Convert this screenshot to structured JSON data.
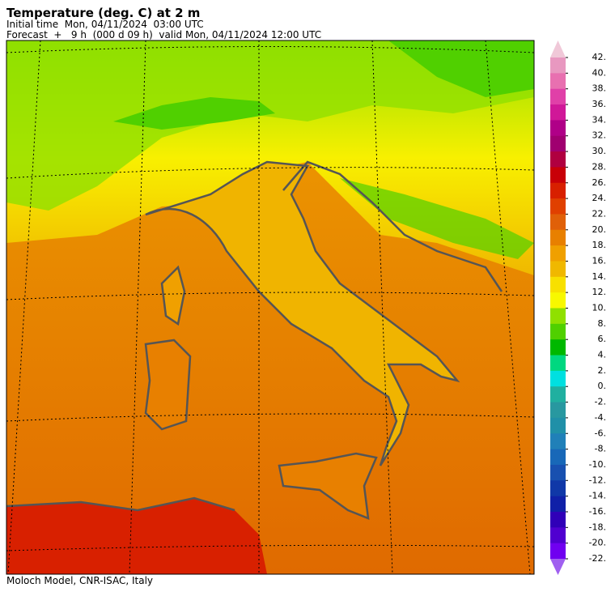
{
  "header": {
    "title": "Temperature (deg. C) at 2 m",
    "initial_time": "Initial time  Mon, 04/11/2024  03:00 UTC",
    "forecast": "Forecast  +   9 h  (000 d 09 h)  valid Mon, 04/11/2024 12:00 UTC"
  },
  "footer": {
    "credit": "Moloch Model, CNR-ISAC, Italy"
  },
  "colorbar": {
    "ticks": [
      {
        "value": 42,
        "label": "42."
      },
      {
        "value": 40,
        "label": "40."
      },
      {
        "value": 38,
        "label": "38."
      },
      {
        "value": 36,
        "label": "36."
      },
      {
        "value": 34,
        "label": "34."
      },
      {
        "value": 32,
        "label": "32."
      },
      {
        "value": 30,
        "label": "30."
      },
      {
        "value": 28,
        "label": "28."
      },
      {
        "value": 26,
        "label": "26."
      },
      {
        "value": 24,
        "label": "24."
      },
      {
        "value": 22,
        "label": "22."
      },
      {
        "value": 20,
        "label": "20."
      },
      {
        "value": 18,
        "label": "18."
      },
      {
        "value": 16,
        "label": "16."
      },
      {
        "value": 14,
        "label": "14."
      },
      {
        "value": 12,
        "label": "12."
      },
      {
        "value": 10,
        "label": "10."
      },
      {
        "value": 8,
        "label": "8."
      },
      {
        "value": 6,
        "label": "6."
      },
      {
        "value": 4,
        "label": "4."
      },
      {
        "value": 2,
        "label": "2."
      },
      {
        "value": 0,
        "label": "0."
      },
      {
        "value": -2,
        "label": "-2."
      },
      {
        "value": -4,
        "label": "-4."
      },
      {
        "value": -6,
        "label": "-6."
      },
      {
        "value": -8,
        "label": "-8."
      },
      {
        "value": -10,
        "label": "-10."
      },
      {
        "value": -12,
        "label": "-12."
      },
      {
        "value": -14,
        "label": "-14."
      },
      {
        "value": -16,
        "label": "-16."
      },
      {
        "value": -18,
        "label": "-18."
      },
      {
        "value": -20,
        "label": "-20."
      },
      {
        "value": -22,
        "label": "-22."
      }
    ],
    "colors": [
      "#f0c8d8",
      "#e898c0",
      "#e870b0",
      "#e040a8",
      "#d01898",
      "#b00088",
      "#a00070",
      "#b00040",
      "#c80008",
      "#d82000",
      "#e04000",
      "#e06008",
      "#e88000",
      "#f0a000",
      "#f0b800",
      "#f8e000",
      "#f8f800",
      "#90e000",
      "#50d000",
      "#00b800",
      "#00d880",
      "#00e0e0",
      "#20b0a0",
      "#2898a0",
      "#2090a8",
      "#2080b8",
      "#1868b8",
      "#1850b0",
      "#1038a8",
      "#1020a8",
      "#3000b8",
      "#5000d0",
      "#7000f0",
      "#a060f0"
    ]
  }
}
